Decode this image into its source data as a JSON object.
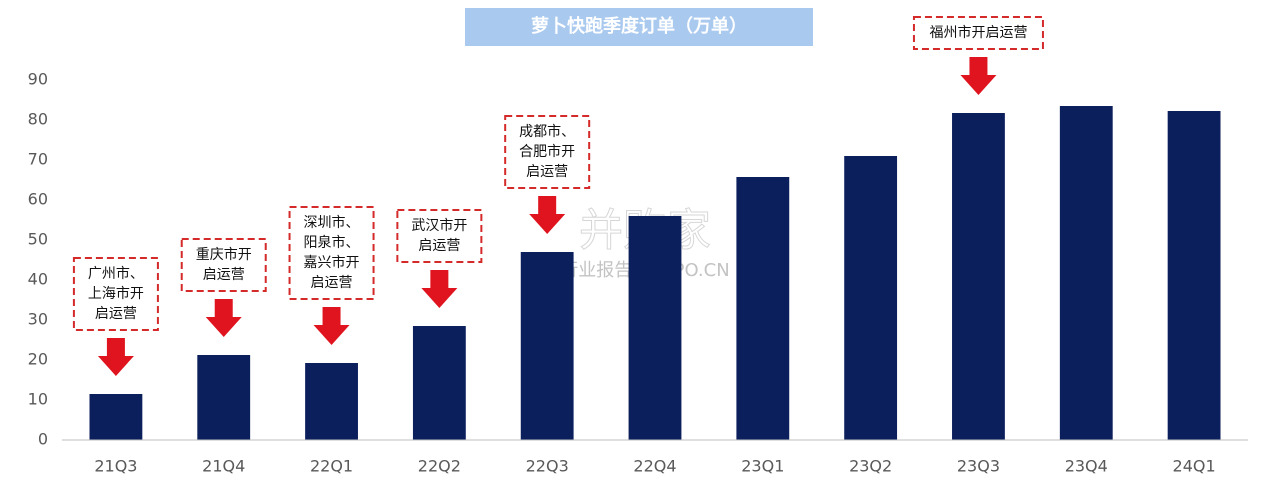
{
  "chart_data": {
    "type": "bar",
    "title": "萝卜快跑季度订单（万单）",
    "categories": [
      "21Q3",
      "21Q4",
      "22Q1",
      "22Q2",
      "22Q3",
      "22Q4",
      "23Q1",
      "23Q2",
      "23Q3",
      "23Q4",
      "24Q1"
    ],
    "values": [
      11.5,
      21.25,
      19.25,
      28.5,
      47,
      56,
      65.75,
      71,
      81.75,
      83.5,
      82.25
    ],
    "color": "#0b1f5c",
    "ylim": [
      0,
      90
    ],
    "yticks": [
      0,
      10,
      20,
      30,
      40,
      50,
      60,
      70,
      80,
      90
    ],
    "grid": false,
    "annotations": [
      {
        "category": 0,
        "lines": [
          "广州市、",
          "上海市开",
          "启运营"
        ]
      },
      {
        "category": 1,
        "lines": [
          "重庆市开",
          "启运营"
        ]
      },
      {
        "category": 2,
        "lines": [
          "深圳市、",
          "阳泉市、",
          "嘉兴市开",
          "启运营"
        ]
      },
      {
        "category": 3,
        "lines": [
          "武汉市开",
          "启运营"
        ]
      },
      {
        "category": 4,
        "lines": [
          "成都市、",
          "合肥市开",
          "启运营"
        ]
      },
      {
        "category": 8,
        "lines": [
          "福州市开启运营"
        ]
      }
    ],
    "watermark": [
      "并购家",
      "行业报告 IPOIPO.CN"
    ]
  }
}
